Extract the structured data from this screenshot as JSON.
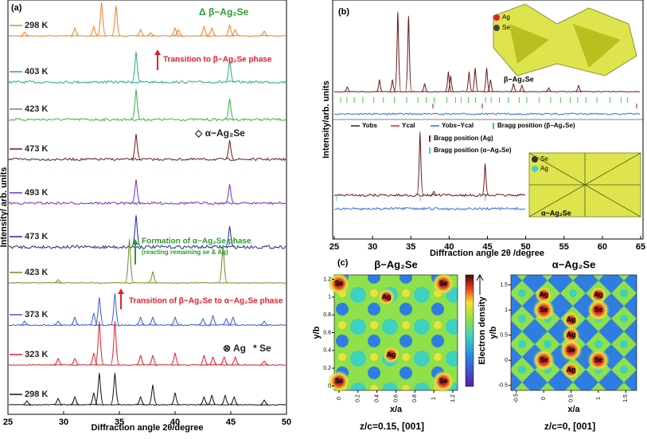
{
  "panel_labels": [
    "(a)",
    "(b)",
    "(c)"
  ],
  "chart_data": [
    {
      "type": "line",
      "xlabel": "Diffraction angle 2θ/degree",
      "ylabel": "Intensity/ arb. units",
      "xlim": [
        25,
        50
      ],
      "xticks": [
        25,
        30,
        35,
        40,
        45,
        50
      ],
      "series": [
        {
          "name": "298 K",
          "color": "#f07f2b",
          "peaks": [
            26.5,
            31,
            32.7,
            33.4,
            34.7,
            36.9,
            37.8,
            40,
            40.3,
            42.6,
            43.3,
            44.9,
            45.4,
            48
          ],
          "values": [
            5,
            10,
            12,
            42,
            38,
            8,
            4,
            10,
            8,
            12,
            10,
            14,
            8,
            6
          ]
        },
        {
          "name": "403 K",
          "color": "#2aa889",
          "peaks": [
            36.5,
            44.9
          ],
          "values": [
            38,
            28
          ]
        },
        {
          "name": "423 K",
          "color": "#3cb043",
          "peaks": [
            36.5,
            44.9
          ],
          "values": [
            38,
            26
          ]
        },
        {
          "name": "473 K",
          "color": "#6b1a1a",
          "peaks": [
            36.5,
            44.9
          ],
          "values": [
            32,
            24
          ]
        },
        {
          "name": "493 K",
          "color": "#7b2fbf",
          "peaks": [
            36.5,
            44.9
          ],
          "values": [
            30,
            24
          ]
        },
        {
          "name": "473 K",
          "color": "#1f2a8c",
          "peaks": [
            36.5,
            44.9
          ],
          "values": [
            40,
            26
          ]
        },
        {
          "name": "423 K",
          "color": "#6b8e23",
          "peaks": [
            29.5,
            35.9,
            38,
            44.3
          ],
          "values": [
            4,
            55,
            14,
            48
          ]
        },
        {
          "name": "373 K",
          "color": "#3a5bd9",
          "peaks": [
            26.5,
            29.5,
            31,
            32.7,
            33.2,
            34.6,
            36.9,
            38,
            40,
            42.5,
            43.4,
            44.6,
            45.2,
            48
          ],
          "values": [
            5,
            5,
            10,
            15,
            35,
            40,
            10,
            10,
            10,
            8,
            12,
            8,
            10,
            5
          ]
        },
        {
          "name": "323 K",
          "color": "#e0202a",
          "peaks": [
            29.5,
            31,
            32.7,
            33.2,
            34.6,
            36.9,
            38,
            40,
            42.6,
            43.4,
            44.4,
            45.4,
            48
          ],
          "values": [
            8,
            8,
            15,
            55,
            55,
            12,
            12,
            15,
            12,
            10,
            10,
            10,
            5
          ]
        },
        {
          "name": "298 K",
          "color": "#111111",
          "peaks": [
            26.7,
            29.5,
            31,
            32.7,
            33.2,
            34.6,
            36.9,
            38,
            40,
            42.6,
            43.3,
            44.5,
            45.3,
            48
          ],
          "values": [
            5,
            8,
            10,
            15,
            40,
            40,
            10,
            25,
            15,
            10,
            12,
            12,
            10,
            6
          ]
        }
      ],
      "annotations": [
        "Δ β−Ag₂Se",
        "Transition to β−Ag₂Se phase",
        "◇ α−Ag₂Se",
        "Formation of α−Ag₂Se phase",
        "(reacting remaining se & Ag)",
        "Transition of β−Ag₂Se  to α−Ag₂Se phase",
        "⊗ Ag",
        "* Se"
      ]
    },
    {
      "type": "line",
      "xlabel": "Diffraction angle 2θ /degree",
      "ylabel": "Intensity/arb. units",
      "xlim": [
        25,
        65
      ],
      "xticks": [
        25,
        30,
        35,
        40,
        45,
        50,
        55,
        60,
        65
      ],
      "series": [
        {
          "name": "β−Ag₂Se",
          "color": "#6b1a1a",
          "peaks": [
            26.7,
            30.9,
            32.6,
            33.3,
            34.7,
            36.8,
            39.9,
            40.2,
            42.6,
            43.4,
            44.9,
            45.4,
            48.4,
            49.5,
            53,
            56.9
          ],
          "values": [
            6,
            15,
            15,
            100,
            95,
            10,
            25,
            20,
            25,
            30,
            30,
            15,
            10,
            8,
            5,
            8
          ]
        },
        {
          "name": "α−Ag₂Se",
          "color": "#6b1a1a",
          "peaks": [
            36.2,
            38,
            44.7
          ],
          "values": [
            80,
            5,
            40
          ]
        }
      ],
      "legend": [
        "Yobs",
        "Ycal",
        "Yobs−Ycal",
        "Bragg position (β−Ag₂Se)",
        "Bragg position (Ag)",
        "Bragg position (α−Ag₂Se)"
      ],
      "inset_labels": [
        "Ag",
        "Se"
      ]
    }
  ],
  "maps": [
    {
      "title": "β−Ag₂Se",
      "caption": "z/c=0.15,    [001]",
      "xlabel": "x/a",
      "ylabel": "y/b",
      "xlim": [
        -0.05,
        1.25
      ],
      "ylim": [
        -0.05,
        1.25
      ],
      "xticks": [
        0,
        0.2,
        0.4,
        0.6,
        0.8,
        1,
        1.2
      ],
      "yticks": [
        0,
        0.2,
        0.4,
        0.6,
        0.8,
        1,
        1.2
      ],
      "atoms": [
        {
          "label": "Se",
          "x": 0,
          "y": 1.15
        },
        {
          "label": "Se",
          "x": 1.1,
          "y": 1.15
        },
        {
          "label": "Ag",
          "x": 0.5,
          "y": 1.0
        },
        {
          "label": "Ag",
          "x": 0.55,
          "y": 0.35
        },
        {
          "label": "Se",
          "x": 0,
          "y": 0.05
        },
        {
          "label": "Se",
          "x": 1.1,
          "y": 0.05
        }
      ]
    },
    {
      "title": "α−Ag₂Se",
      "caption": "z/c=0,    [001]",
      "xlabel": "x/a",
      "ylabel": "y/b",
      "xlim": [
        -0.6,
        1.7
      ],
      "ylim": [
        -0.6,
        1.7
      ],
      "xticks": [
        -0.5,
        0,
        0.5,
        1,
        1.5
      ],
      "yticks": [
        -0.5,
        0,
        0.5,
        1,
        1.5
      ],
      "atoms": [
        {
          "label": "Ag",
          "x": 0,
          "y": 1.3
        },
        {
          "label": "Ag",
          "x": 1,
          "y": 1.3
        },
        {
          "label": "Se",
          "x": 0,
          "y": 1.0
        },
        {
          "label": "Se",
          "x": 1,
          "y": 1.0
        },
        {
          "label": "Ag",
          "x": 0.5,
          "y": 0.8
        },
        {
          "label": "Ag",
          "x": 0.5,
          "y": 0.5
        },
        {
          "label": "Se",
          "x": 0.5,
          "y": 0.2
        },
        {
          "label": "Se",
          "x": 0,
          "y": 0
        },
        {
          "label": "Se",
          "x": 1,
          "y": 0
        },
        {
          "label": "Ag",
          "x": 0.5,
          "y": -0.2
        }
      ]
    }
  ],
  "colorbar_label": "Electron density"
}
